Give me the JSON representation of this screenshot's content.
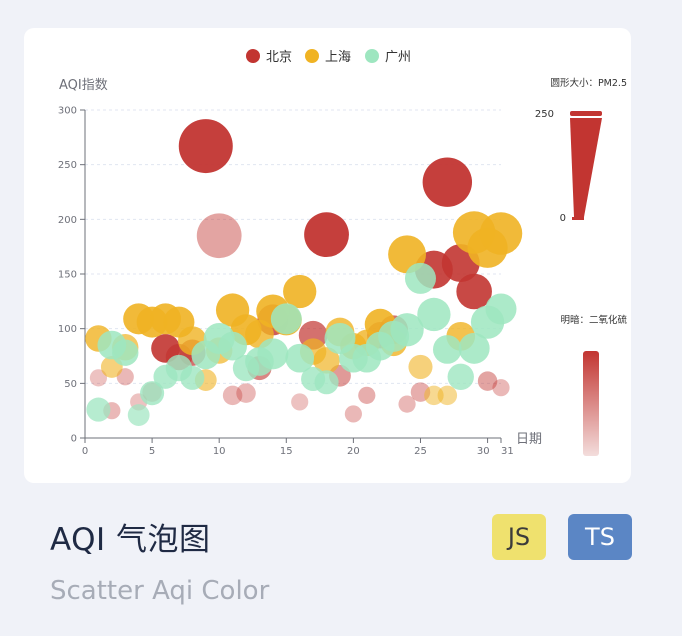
{
  "card": {
    "title": "AQI 气泡图",
    "subtitle": "Scatter Aqi Color",
    "badges": [
      "JS",
      "TS"
    ]
  },
  "chart_data": {
    "type": "scatter",
    "ylabel": "AQI指数",
    "xlabel": "日期",
    "xlim": [
      0,
      31
    ],
    "ylim": [
      0,
      300
    ],
    "x_ticks": [
      "0",
      "5",
      "10",
      "15",
      "20",
      "25",
      "30",
      "31"
    ],
    "y_ticks": [
      "0",
      "50",
      "100",
      "150",
      "200",
      "250",
      "300"
    ],
    "legend": [
      "北京",
      "上海",
      "广州"
    ],
    "colors": {
      "北京": "#c23531",
      "上海": "#f0b323",
      "广州": "#9ee6c0"
    },
    "visual_map_size": {
      "label": "圆形大小：PM2.5",
      "max": "250",
      "min": "0"
    },
    "visual_map_color": {
      "label": "明暗：二氧化硫"
    },
    "series": [
      {
        "name": "北京",
        "points": [
          [
            1,
            55,
            0.2,
            0.3
          ],
          [
            2,
            25,
            0.2,
            0.35
          ],
          [
            3,
            56,
            0.2,
            0.35
          ],
          [
            4,
            33,
            0.2,
            0.3
          ],
          [
            5,
            42,
            0.25,
            0.4
          ],
          [
            6,
            82,
            0.45,
            0.9
          ],
          [
            7,
            74,
            0.4,
            0.7
          ],
          [
            8,
            78,
            0.4,
            0.7
          ],
          [
            9,
            267,
            1.0,
            0.95
          ],
          [
            10,
            185,
            0.8,
            0.45
          ],
          [
            11,
            39,
            0.25,
            0.35
          ],
          [
            12,
            41,
            0.25,
            0.35
          ],
          [
            13,
            64,
            0.35,
            0.6
          ],
          [
            14,
            108,
            0.5,
            0.8
          ],
          [
            15,
            108,
            0.45,
            0.7
          ],
          [
            16,
            33,
            0.2,
            0.3
          ],
          [
            17,
            94,
            0.45,
            0.7
          ],
          [
            18,
            186,
            0.8,
            0.95
          ],
          [
            19,
            57,
            0.3,
            0.5
          ],
          [
            20,
            22,
            0.2,
            0.35
          ],
          [
            21,
            39,
            0.2,
            0.4
          ],
          [
            22,
            94,
            0.4,
            0.7
          ],
          [
            23,
            99,
            0.45,
            0.7
          ],
          [
            24,
            31,
            0.2,
            0.35
          ],
          [
            25,
            42,
            0.25,
            0.4
          ],
          [
            26,
            154,
            0.65,
            0.9
          ],
          [
            27,
            234,
            0.9,
            0.95
          ],
          [
            28,
            160,
            0.65,
            0.9
          ],
          [
            29,
            134,
            0.6,
            0.9
          ],
          [
            30,
            52,
            0.25,
            0.45
          ],
          [
            31,
            46,
            0.2,
            0.35
          ]
        ]
      },
      {
        "name": "上海",
        "points": [
          [
            1,
            91,
            0.4,
            0.8
          ],
          [
            2,
            65,
            0.3,
            0.6
          ],
          [
            3,
            83,
            0.4,
            0.7
          ],
          [
            4,
            109,
            0.5,
            0.9
          ],
          [
            5,
            106,
            0.5,
            0.9
          ],
          [
            6,
            109,
            0.5,
            0.9
          ],
          [
            7,
            106,
            0.5,
            0.9
          ],
          [
            8,
            89,
            0.45,
            0.8
          ],
          [
            9,
            53,
            0.3,
            0.6
          ],
          [
            10,
            80,
            0.4,
            0.7
          ],
          [
            11,
            117,
            0.55,
            0.9
          ],
          [
            12,
            99,
            0.5,
            0.9
          ],
          [
            13,
            95,
            0.45,
            0.8
          ],
          [
            14,
            116,
            0.55,
            0.9
          ],
          [
            15,
            108,
            0.5,
            0.9
          ],
          [
            16,
            134,
            0.55,
            0.9
          ],
          [
            17,
            79,
            0.4,
            0.7
          ],
          [
            18,
            71,
            0.4,
            0.7
          ],
          [
            19,
            97,
            0.45,
            0.8
          ],
          [
            20,
            84,
            0.4,
            0.8
          ],
          [
            21,
            87,
            0.4,
            0.8
          ],
          [
            22,
            104,
            0.5,
            0.9
          ],
          [
            23,
            87,
            0.4,
            0.8
          ],
          [
            24,
            168,
            0.65,
            0.9
          ],
          [
            25,
            65,
            0.35,
            0.6
          ],
          [
            26,
            39,
            0.25,
            0.5
          ],
          [
            27,
            39,
            0.25,
            0.5
          ],
          [
            28,
            93,
            0.45,
            0.8
          ],
          [
            29,
            188,
            0.75,
            0.9
          ],
          [
            30,
            174,
            0.7,
            0.9
          ],
          [
            31,
            187,
            0.75,
            0.9
          ]
        ]
      },
      {
        "name": "广州",
        "points": [
          [
            1,
            26,
            0.35,
            0.75
          ],
          [
            2,
            85,
            0.45,
            0.85
          ],
          [
            3,
            78,
            0.4,
            0.85
          ],
          [
            4,
            21,
            0.3,
            0.7
          ],
          [
            5,
            41,
            0.35,
            0.8
          ],
          [
            6,
            56,
            0.35,
            0.8
          ],
          [
            7,
            64,
            0.4,
            0.8
          ],
          [
            8,
            55,
            0.35,
            0.8
          ],
          [
            9,
            76,
            0.45,
            0.85
          ],
          [
            10,
            91,
            0.5,
            0.85
          ],
          [
            11,
            84,
            0.45,
            0.85
          ],
          [
            12,
            64,
            0.4,
            0.8
          ],
          [
            13,
            70,
            0.45,
            0.85
          ],
          [
            14,
            77,
            0.5,
            0.85
          ],
          [
            15,
            109,
            0.5,
            0.85
          ],
          [
            16,
            73,
            0.45,
            0.85
          ],
          [
            17,
            54,
            0.35,
            0.8
          ],
          [
            18,
            51,
            0.35,
            0.8
          ],
          [
            19,
            91,
            0.5,
            0.85
          ],
          [
            20,
            73,
            0.45,
            0.85
          ],
          [
            21,
            73,
            0.45,
            0.85
          ],
          [
            22,
            84,
            0.45,
            0.85
          ],
          [
            23,
            93,
            0.5,
            0.85
          ],
          [
            24,
            99,
            0.55,
            0.85
          ],
          [
            25,
            146,
            0.5,
            0.85
          ],
          [
            26,
            113,
            0.55,
            0.85
          ],
          [
            27,
            81,
            0.45,
            0.85
          ],
          [
            28,
            56,
            0.4,
            0.8
          ],
          [
            29,
            82,
            0.5,
            0.85
          ],
          [
            30,
            106,
            0.55,
            0.85
          ],
          [
            31,
            118,
            0.5,
            0.85
          ]
        ]
      }
    ]
  }
}
